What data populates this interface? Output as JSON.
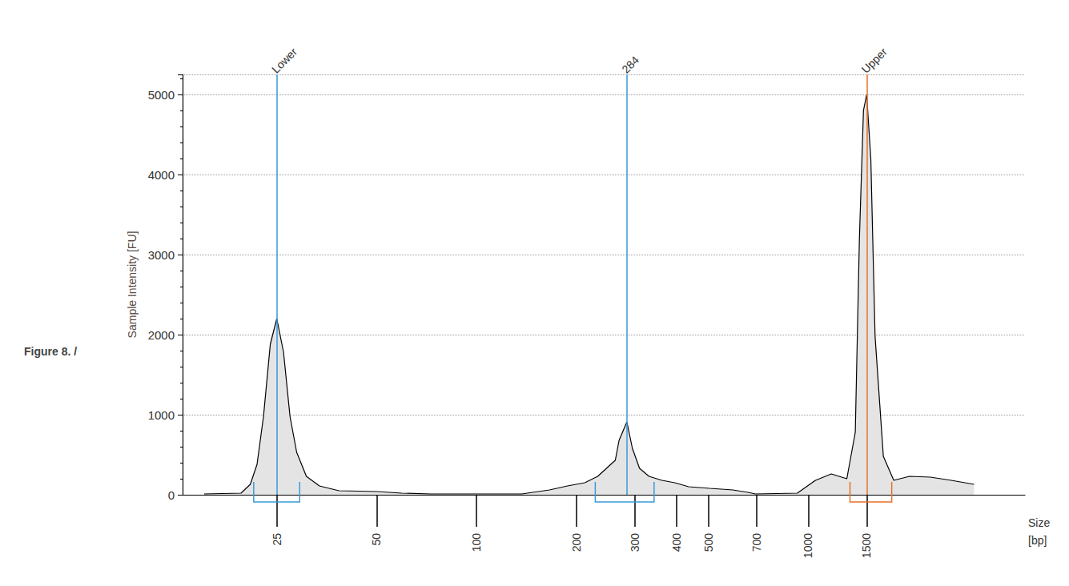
{
  "chart_data": {
    "type": "line",
    "caption": "Figure 8. /",
    "x_label": "Size\n[bp]",
    "y_label": "Sample Intensity [FU]",
    "log": "x",
    "grid": true,
    "color": "#000000",
    "x": [
      15.1,
      19.5,
      20.8,
      21.8,
      22.8,
      23.9,
      25,
      26.2,
      27.4,
      28.7,
      30.7,
      33.6,
      38.5,
      50,
      59.5,
      73,
      100,
      137,
      166,
      188,
      212,
      232,
      254,
      262,
      269,
      284,
      295,
      310,
      331,
      362,
      396,
      436,
      505,
      592,
      658,
      693,
      927,
      1052,
      1173,
      1307,
      1386,
      1426,
      1467,
      1500,
      1544,
      1590,
      1684,
      1810,
      2019,
      2333,
      2696,
      3162
    ],
    "values": [
      10,
      20,
      130,
      380,
      980,
      1880,
      2200,
      1780,
      980,
      530,
      230,
      110,
      50,
      40,
      20,
      10,
      10,
      10,
      60,
      110,
      150,
      230,
      380,
      430,
      680,
      910,
      580,
      330,
      230,
      180,
      150,
      100,
      80,
      60,
      30,
      10,
      20,
      180,
      260,
      200,
      780,
      3190,
      4800,
      5000,
      4190,
      1980,
      480,
      180,
      230,
      220,
      180,
      130
    ],
    "xlim": [
      13,
      4500
    ],
    "xticks": [
      25,
      50,
      100,
      200,
      300,
      400,
      500,
      700,
      1000,
      1500
    ],
    "ylim": [
      0,
      5250
    ],
    "yticks": [
      0,
      1000,
      2000,
      3000,
      4000,
      5000
    ],
    "peaks": [
      {
        "label": "Lower",
        "size": 25,
        "start": 21.3,
        "end": 29.3,
        "color": "#3a9ad9"
      },
      {
        "label": "284",
        "size": 284,
        "start": 228,
        "end": 343,
        "color": "#3a9ad9"
      },
      {
        "label": "Upper",
        "size": 1500,
        "start": 1336,
        "end": 1785,
        "color": "#e8702a"
      }
    ]
  }
}
